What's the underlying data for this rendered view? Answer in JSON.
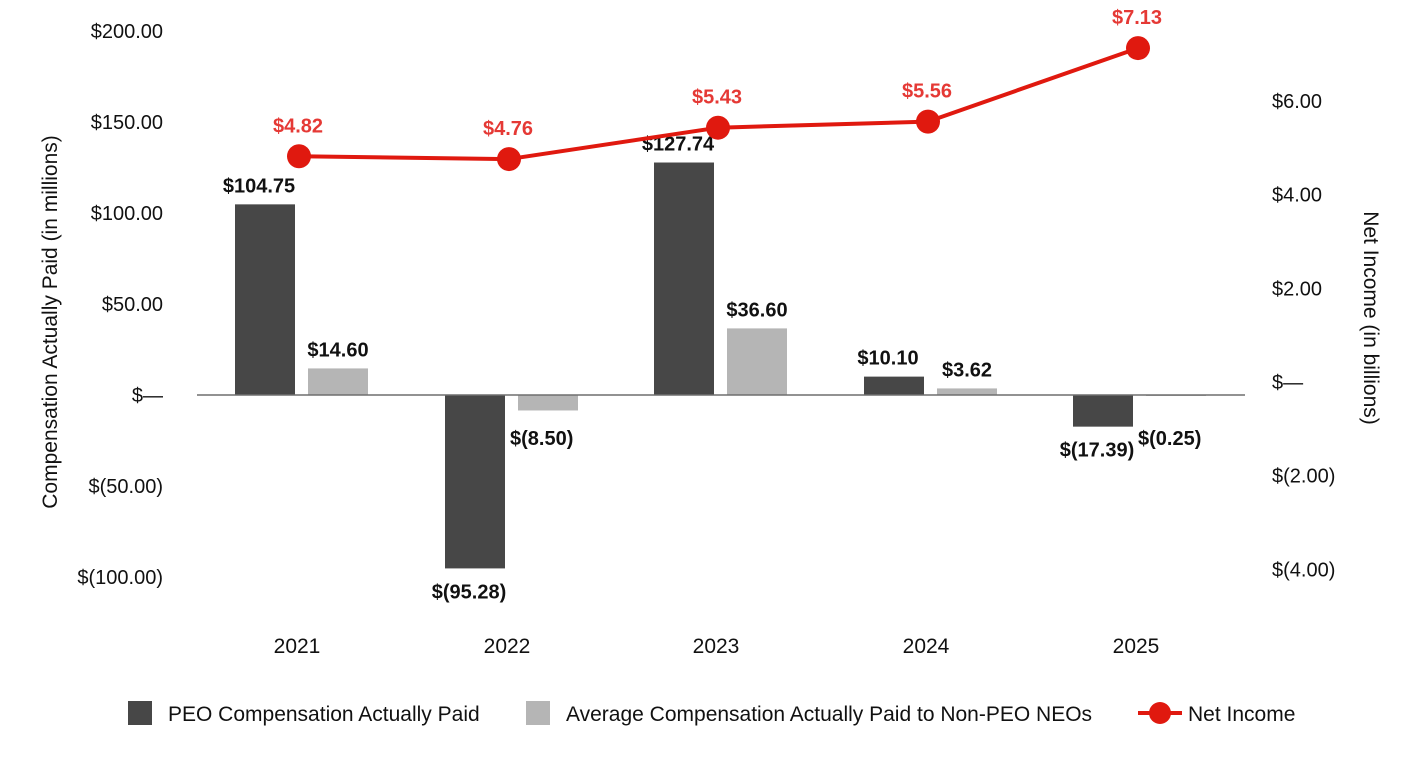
{
  "chart_data": {
    "type": "bar",
    "categories": [
      "2021",
      "2022",
      "2023",
      "2024",
      "2025"
    ],
    "left_axis": {
      "label": "Compensation Actually Paid (in millions)",
      "range": [
        -100,
        200
      ],
      "ticks": [
        200,
        150,
        100,
        50,
        0,
        -50,
        -100
      ],
      "tick_labels": [
        "$200.00",
        "$150.00",
        "$100.00",
        "$50.00",
        "$—",
        "$(50.00)",
        "$(100.00)"
      ]
    },
    "right_axis": {
      "label": "Net Income (in billions)",
      "ticks": [
        6,
        4,
        2,
        0,
        -2,
        -4
      ],
      "tick_labels": [
        "$6.00",
        "$4.00",
        "$2.00",
        "$—",
        "$(2.00)",
        "$(4.00)"
      ]
    },
    "series": [
      {
        "name": "PEO Compensation Actually Paid",
        "type": "bar",
        "axis": "left",
        "color": "#474747",
        "values": [
          104.75,
          -95.28,
          127.74,
          10.1,
          -17.39
        ],
        "labels": [
          "$104.75",
          "$(95.28)",
          "$127.74",
          "$10.10",
          "$(17.39)"
        ]
      },
      {
        "name": "Average Compensation Actually Paid to Non-PEO NEOs",
        "type": "bar",
        "axis": "left",
        "color": "#b5b5b5",
        "values": [
          14.6,
          -8.5,
          36.6,
          3.62,
          -0.25
        ],
        "labels": [
          "$14.60",
          "$(8.50)",
          "$36.60",
          "$3.62",
          "$(0.25)"
        ]
      },
      {
        "name": "Net Income",
        "type": "line",
        "axis": "right",
        "color": "#e0190f",
        "label_color": "#e53935",
        "values": [
          4.82,
          4.76,
          5.43,
          5.56,
          7.13
        ],
        "labels": [
          "$4.82",
          "$4.76",
          "$5.43",
          "$5.56",
          "$7.13"
        ]
      }
    ],
    "grid": false,
    "legend_position": "bottom"
  }
}
